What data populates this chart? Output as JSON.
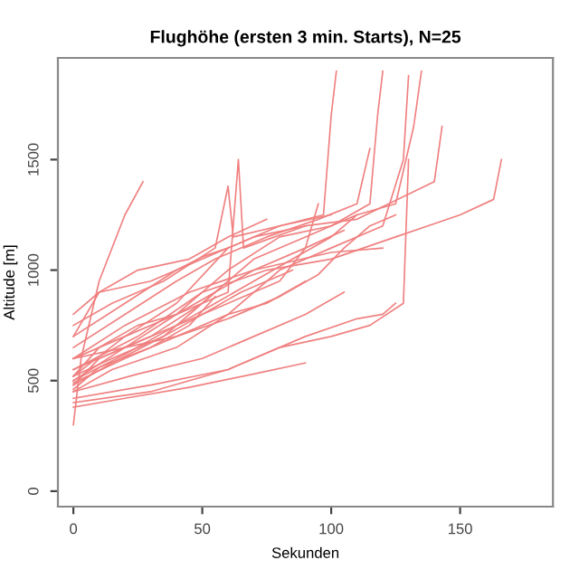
{
  "chart_data": {
    "type": "line",
    "title": "Flughöhe (ersten 3 min. Starts), N=25",
    "xlabel": "Sekunden",
    "ylabel": "Altitude [m]",
    "xlim": [
      -6,
      186
    ],
    "ylim": [
      -70,
      1960
    ],
    "xticks": [
      0,
      50,
      100,
      150
    ],
    "yticks": [
      0,
      500,
      1000,
      1500
    ],
    "grid": false,
    "legend": false,
    "marker": "none",
    "line_style": "solid",
    "series": [
      {
        "color": "#f08080",
        "x": [
          0,
          3,
          10,
          20,
          27
        ],
        "values": [
          300,
          600,
          950,
          1250,
          1400
        ]
      },
      {
        "color": "#f08080",
        "x": [
          0,
          10,
          30,
          50,
          70,
          90,
          110,
          125,
          132,
          135
        ],
        "values": [
          480,
          600,
          700,
          850,
          1050,
          1150,
          1250,
          1300,
          1650,
          1900
        ]
      },
      {
        "color": "#f08080",
        "x": [
          0,
          15,
          40,
          60,
          80,
          100,
          120,
          128,
          130
        ],
        "values": [
          450,
          550,
          650,
          800,
          1000,
          1100,
          1200,
          1500,
          1880
        ]
      },
      {
        "color": "#f08080",
        "x": [
          0,
          20,
          40,
          60,
          80,
          100,
          115,
          118,
          120
        ],
        "values": [
          500,
          650,
          800,
          1000,
          1150,
          1200,
          1300,
          1700,
          1900
        ]
      },
      {
        "color": "#f08080",
        "x": [
          0,
          20,
          40,
          60,
          80,
          97,
          100,
          102
        ],
        "values": [
          520,
          700,
          850,
          1100,
          1200,
          1250,
          1700,
          1900
        ]
      },
      {
        "color": "#f08080",
        "x": [
          0,
          10,
          30,
          50,
          70,
          90,
          110,
          140,
          143
        ],
        "values": [
          700,
          900,
          950,
          1050,
          1150,
          1200,
          1230,
          1400,
          1650
        ]
      },
      {
        "color": "#f08080",
        "x": [
          0,
          15,
          35,
          55,
          60,
          62,
          80,
          100
        ],
        "values": [
          750,
          850,
          950,
          1100,
          1380,
          1150,
          1200,
          1250
        ]
      },
      {
        "color": "#f08080",
        "x": [
          0,
          20,
          40,
          60,
          64,
          66,
          90
        ],
        "values": [
          600,
          700,
          800,
          900,
          1500,
          1100,
          1200
        ]
      },
      {
        "color": "#f08080",
        "x": [
          0,
          30,
          60,
          80,
          100,
          115,
          128,
          130
        ],
        "values": [
          420,
          480,
          550,
          650,
          700,
          750,
          850,
          1500
        ]
      },
      {
        "color": "#f08080",
        "x": [
          0,
          30,
          60,
          90,
          110,
          120,
          125
        ],
        "values": [
          400,
          450,
          550,
          700,
          780,
          800,
          850
        ]
      },
      {
        "color": "#f08080",
        "x": [
          0,
          25,
          50,
          75,
          100,
          125,
          150,
          163,
          166
        ],
        "values": [
          550,
          700,
          900,
          1000,
          1050,
          1150,
          1250,
          1320,
          1500
        ]
      },
      {
        "color": "#f08080",
        "x": [
          0,
          20,
          45,
          70,
          100,
          120
        ],
        "values": [
          600,
          750,
          900,
          1000,
          1080,
          1100
        ]
      },
      {
        "color": "#f08080",
        "x": [
          0,
          20,
          40,
          55,
          75,
          95,
          110,
          115
        ],
        "values": [
          650,
          800,
          950,
          1050,
          1150,
          1230,
          1300,
          1550
        ]
      },
      {
        "color": "#f08080",
        "x": [
          0,
          15,
          35,
          55,
          70,
          90,
          105
        ],
        "values": [
          480,
          580,
          700,
          900,
          1000,
          1100,
          1180
        ]
      },
      {
        "color": "#f08080",
        "x": [
          0,
          20,
          40,
          60,
          80,
          90,
          95
        ],
        "values": [
          500,
          620,
          750,
          850,
          950,
          1100,
          1300
        ]
      },
      {
        "color": "#f08080",
        "x": [
          0,
          25,
          50,
          70,
          90,
          105
        ],
        "values": [
          450,
          530,
          600,
          700,
          800,
          900
        ]
      },
      {
        "color": "#f08080",
        "x": [
          0,
          15,
          35,
          50,
          65,
          85
        ],
        "values": [
          520,
          600,
          700,
          800,
          900,
          1000
        ]
      },
      {
        "color": "#f08080",
        "x": [
          0,
          10,
          25,
          45,
          60,
          75
        ],
        "values": [
          800,
          900,
          1000,
          1050,
          1150,
          1230
        ]
      },
      {
        "color": "#f08080",
        "x": [
          0,
          20,
          40,
          60,
          75,
          90
        ],
        "values": [
          550,
          650,
          700,
          800,
          850,
          950
        ]
      },
      {
        "color": "#f08080",
        "x": [
          0,
          20,
          40,
          55,
          70,
          85,
          100,
          110
        ],
        "values": [
          600,
          650,
          750,
          850,
          950,
          1050,
          1150,
          1250
        ]
      },
      {
        "color": "#f08080",
        "x": [
          0,
          20,
          45,
          70,
          90
        ],
        "values": [
          380,
          420,
          470,
          530,
          580
        ]
      },
      {
        "color": "#f08080",
        "x": [
          0,
          20,
          40,
          50,
          60
        ],
        "values": [
          700,
          850,
          1000,
          1060,
          1100
        ]
      },
      {
        "color": "#f08080",
        "x": [
          0,
          10,
          30,
          45,
          55
        ],
        "values": [
          460,
          560,
          650,
          750,
          880
        ]
      },
      {
        "color": "#f08080",
        "x": [
          0,
          20,
          40,
          60,
          80,
          95,
          105,
          115,
          125
        ],
        "values": [
          490,
          600,
          700,
          780,
          880,
          980,
          1100,
          1200,
          1250
        ]
      },
      {
        "color": "#f08080",
        "x": [
          0,
          10,
          25,
          40,
          55
        ],
        "values": [
          520,
          650,
          750,
          800,
          900
        ]
      }
    ]
  }
}
